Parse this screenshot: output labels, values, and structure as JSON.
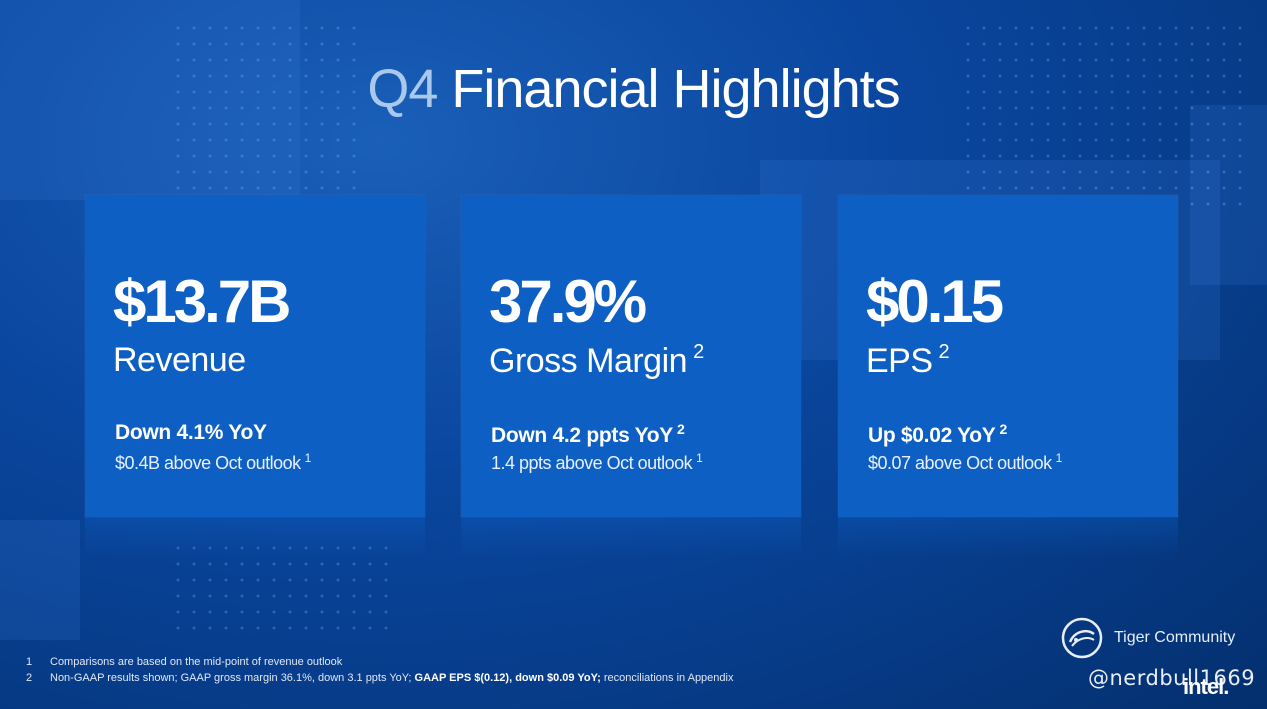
{
  "title": {
    "q": "Q4",
    "rest": " Financial Highlights"
  },
  "cards": [
    {
      "value": "$13.7B",
      "label": "Revenue",
      "label_sup": "",
      "change": "Down 4.1% YoY",
      "change_sup": "",
      "outlook": "$0.4B above Oct outlook",
      "outlook_sup": "1"
    },
    {
      "value": "37.9%",
      "label": "Gross Margin",
      "label_sup": "2",
      "change": "Down 4.2 ppts YoY",
      "change_sup": "2",
      "outlook": "1.4 ppts above Oct outlook",
      "outlook_sup": "1"
    },
    {
      "value": "$0.15",
      "label": "EPS",
      "label_sup": "2",
      "change": "Up $0.02 YoY",
      "change_sup": "2",
      "outlook": "$0.07 above Oct outlook",
      "outlook_sup": "1"
    }
  ],
  "footnotes": {
    "n1": "1",
    "t1": "Comparisons are based on the mid-point of revenue outlook",
    "n2": "2",
    "t2a": "Non-GAAP results shown; GAAP gross margin 36.1%, down 3.1 ppts YoY; ",
    "t2b": "GAAP EPS $(0.12), down $0.09 YoY;",
    "t2c": " reconciliations in Appendix"
  },
  "watermark": {
    "text": "Tiger Community",
    "handle": "@nerdbull1669"
  },
  "brand": {
    "logo_text": "intel."
  },
  "colors": {
    "background": "#0a47a0",
    "card": "#0d5fc4",
    "title_accent": "#a9c8ec"
  }
}
